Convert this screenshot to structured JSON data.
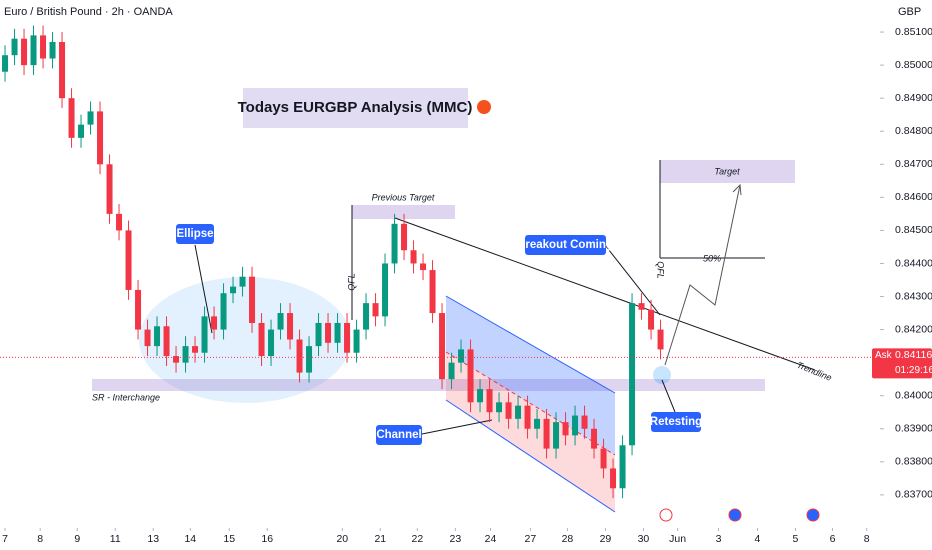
{
  "chart_data": {
    "type": "candlestick",
    "title": "Euro / British Pound · 2h · OANDA",
    "currency": "GBP",
    "up_color": "#089981",
    "down_color": "#f23645",
    "ylim": [
      0.83624,
      0.85197
    ],
    "yticks": [
      {
        "value": 0.851,
        "label": "0.85100"
      },
      {
        "value": 0.85,
        "label": "0.85000"
      },
      {
        "value": 0.849,
        "label": "0.84900"
      },
      {
        "value": 0.848,
        "label": "0.84800"
      },
      {
        "value": 0.847,
        "label": "0.84700"
      },
      {
        "value": 0.846,
        "label": "0.84600"
      },
      {
        "value": 0.845,
        "label": "0.84500"
      },
      {
        "value": 0.844,
        "label": "0.84400"
      },
      {
        "value": 0.843,
        "label": "0.84300"
      },
      {
        "value": 0.842,
        "label": "0.84200"
      },
      {
        "value": 0.84,
        "label": "0.84000"
      },
      {
        "value": 0.839,
        "label": "0.83900"
      },
      {
        "value": 0.838,
        "label": "0.83800"
      },
      {
        "value": 0.837,
        "label": "0.83700"
      }
    ],
    "xlim": [
      -0.53,
      92.1
    ],
    "xticks": [
      {
        "value": 0,
        "label": "7"
      },
      {
        "value": 3.7,
        "label": "8"
      },
      {
        "value": 7.6,
        "label": "9"
      },
      {
        "value": 11.6,
        "label": "11"
      },
      {
        "value": 15.6,
        "label": "13"
      },
      {
        "value": 19.5,
        "label": "14"
      },
      {
        "value": 23.6,
        "label": "15"
      },
      {
        "value": 27.6,
        "label": "16"
      },
      {
        "value": 35.5,
        "label": "20"
      },
      {
        "value": 39.5,
        "label": "21"
      },
      {
        "value": 43.4,
        "label": "22"
      },
      {
        "value": 47.4,
        "label": "23"
      },
      {
        "value": 51.1,
        "label": "24"
      },
      {
        "value": 55.3,
        "label": "27"
      },
      {
        "value": 59.2,
        "label": "28"
      },
      {
        "value": 63.2,
        "label": "29"
      },
      {
        "value": 67.2,
        "label": "30"
      },
      {
        "value": 70.8,
        "label": "Jun"
      },
      {
        "value": 75.1,
        "label": "3"
      },
      {
        "value": 79.2,
        "label": "4"
      },
      {
        "value": 83.2,
        "label": "5"
      },
      {
        "value": 87.1,
        "label": "6"
      },
      {
        "value": 90.7,
        "label": "8"
      }
    ],
    "ohlc": [
      [
        0.8498,
        0.8506,
        0.8495,
        0.8503
      ],
      [
        0.8503,
        0.8511,
        0.85,
        0.8508
      ],
      [
        0.8508,
        0.8511,
        0.8497,
        0.85
      ],
      [
        0.85,
        0.8512,
        0.8497,
        0.8509
      ],
      [
        0.8509,
        0.8512,
        0.8499,
        0.8502
      ],
      [
        0.8502,
        0.851,
        0.8499,
        0.8507
      ],
      [
        0.8507,
        0.851,
        0.8487,
        0.849
      ],
      [
        0.849,
        0.8493,
        0.8475,
        0.8478
      ],
      [
        0.8478,
        0.8485,
        0.8475,
        0.8482
      ],
      [
        0.8482,
        0.8489,
        0.8479,
        0.8486
      ],
      [
        0.8486,
        0.8489,
        0.8467,
        0.847
      ],
      [
        0.847,
        0.8473,
        0.8452,
        0.8455
      ],
      [
        0.8455,
        0.8458,
        0.8447,
        0.845
      ],
      [
        0.845,
        0.8453,
        0.8429,
        0.8432
      ],
      [
        0.8432,
        0.8435,
        0.8417,
        0.842
      ],
      [
        0.842,
        0.8423,
        0.8412,
        0.8415
      ],
      [
        0.8415,
        0.8424,
        0.8412,
        0.8421
      ],
      [
        0.8421,
        0.8424,
        0.8409,
        0.8412
      ],
      [
        0.8412,
        0.8415,
        0.8407,
        0.841
      ],
      [
        0.841,
        0.8418,
        0.8407,
        0.8415
      ],
      [
        0.8415,
        0.8418,
        0.841,
        0.8413
      ],
      [
        0.8413,
        0.8427,
        0.841,
        0.8424
      ],
      [
        0.8424,
        0.8427,
        0.8417,
        0.842
      ],
      [
        0.842,
        0.8434,
        0.8417,
        0.8431
      ],
      [
        0.8431,
        0.8436,
        0.8428,
        0.8433
      ],
      [
        0.8433,
        0.8439,
        0.843,
        0.8436
      ],
      [
        0.8436,
        0.8439,
        0.8419,
        0.8422
      ],
      [
        0.8422,
        0.8425,
        0.8409,
        0.8412
      ],
      [
        0.8412,
        0.8423,
        0.8409,
        0.842
      ],
      [
        0.842,
        0.8428,
        0.8417,
        0.8425
      ],
      [
        0.8425,
        0.8428,
        0.8414,
        0.8417
      ],
      [
        0.8417,
        0.842,
        0.8404,
        0.8407
      ],
      [
        0.8407,
        0.8418,
        0.8404,
        0.8415
      ],
      [
        0.8415,
        0.8425,
        0.8412,
        0.8422
      ],
      [
        0.8422,
        0.8425,
        0.8413,
        0.8416
      ],
      [
        0.8416,
        0.8425,
        0.8413,
        0.8422
      ],
      [
        0.8422,
        0.8425,
        0.841,
        0.8413
      ],
      [
        0.8413,
        0.8423,
        0.841,
        0.842
      ],
      [
        0.842,
        0.8431,
        0.8417,
        0.8428
      ],
      [
        0.8428,
        0.8431,
        0.8421,
        0.8424
      ],
      [
        0.8424,
        0.8443,
        0.8421,
        0.844
      ],
      [
        0.844,
        0.8455,
        0.8437,
        0.8452
      ],
      [
        0.8452,
        0.8455,
        0.8441,
        0.8444
      ],
      [
        0.8444,
        0.8447,
        0.8437,
        0.844
      ],
      [
        0.844,
        0.8443,
        0.8435,
        0.8438
      ],
      [
        0.8438,
        0.8441,
        0.8422,
        0.8425
      ],
      [
        0.8425,
        0.8428,
        0.8402,
        0.8405
      ],
      [
        0.8405,
        0.8413,
        0.8402,
        0.841
      ],
      [
        0.841,
        0.8417,
        0.8407,
        0.8414
      ],
      [
        0.8414,
        0.8417,
        0.8395,
        0.8398
      ],
      [
        0.8398,
        0.8405,
        0.8395,
        0.8402
      ],
      [
        0.8402,
        0.8405,
        0.8392,
        0.8395
      ],
      [
        0.8395,
        0.8401,
        0.8392,
        0.8398
      ],
      [
        0.8398,
        0.8401,
        0.839,
        0.8393
      ],
      [
        0.8393,
        0.84,
        0.839,
        0.8397
      ],
      [
        0.8397,
        0.84,
        0.8387,
        0.839
      ],
      [
        0.839,
        0.8396,
        0.8387,
        0.8393
      ],
      [
        0.8393,
        0.8396,
        0.8381,
        0.8384
      ],
      [
        0.8384,
        0.8395,
        0.8381,
        0.8392
      ],
      [
        0.8392,
        0.8395,
        0.8385,
        0.8388
      ],
      [
        0.8388,
        0.8397,
        0.8385,
        0.8394
      ],
      [
        0.8394,
        0.8397,
        0.8387,
        0.839
      ],
      [
        0.839,
        0.8393,
        0.8381,
        0.8384
      ],
      [
        0.8384,
        0.8387,
        0.8375,
        0.8378
      ],
      [
        0.8378,
        0.8381,
        0.8369,
        0.8372
      ],
      [
        0.8372,
        0.8388,
        0.8369,
        0.8385
      ],
      [
        0.8385,
        0.8431,
        0.8382,
        0.8428
      ],
      [
        0.8428,
        0.8431,
        0.8423,
        0.8426
      ],
      [
        0.8426,
        0.8429,
        0.8417,
        0.842
      ],
      [
        0.842,
        0.8423,
        0.8411,
        0.8414
      ]
    ],
    "price_tag": {
      "side": "Ask",
      "price": 0.84116,
      "countdown": "01:29:16"
    },
    "annotations": {
      "heading": "Todays EURGBP Analysis (MMC)",
      "ellipse": "Ellipse",
      "sr": "SR - Interchange",
      "previous_target": "Previous Target",
      "qfl_left": "QFL",
      "qfl_right": "QFL",
      "channel": "Channel",
      "breakout": "Breakout Coming",
      "target": "Target",
      "fifty": "50%",
      "trendline": "Trendline",
      "retesting": "Retesting"
    }
  }
}
